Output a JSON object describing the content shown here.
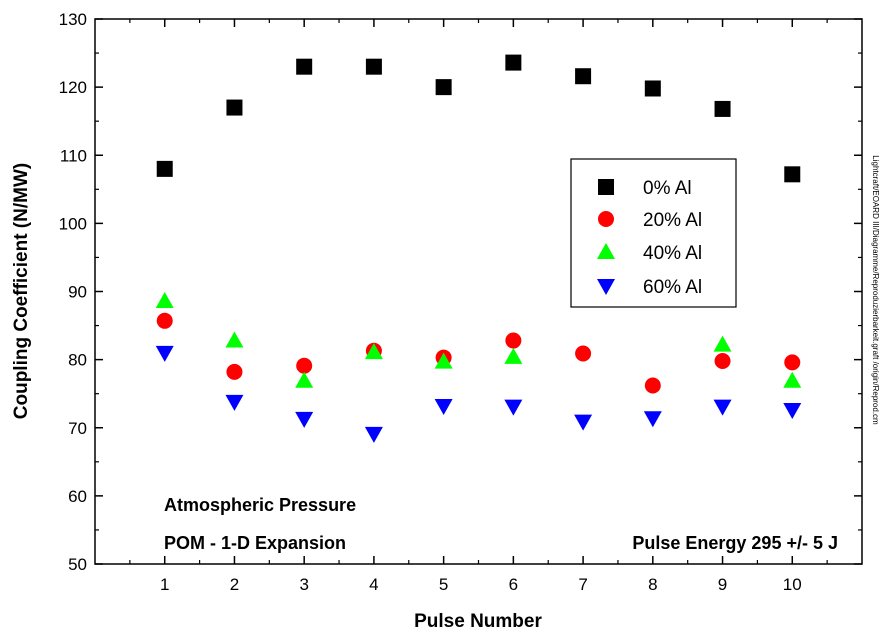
{
  "chart_data": {
    "type": "scatter",
    "xlabel": "Pulse Number",
    "ylabel": "Coupling Coefficient (N/MW)",
    "xlim": [
      0,
      11
    ],
    "ylim": [
      50,
      130
    ],
    "x_ticks": [
      1,
      2,
      3,
      4,
      5,
      6,
      7,
      8,
      9,
      10
    ],
    "y_ticks": [
      50,
      60,
      70,
      80,
      90,
      100,
      110,
      120,
      130
    ],
    "grid": false,
    "legend_position": "right",
    "series": [
      {
        "name": "0% Al",
        "marker": "square",
        "color": "#000000",
        "x": [
          1,
          2,
          3,
          4,
          5,
          6,
          7,
          8,
          9,
          10
        ],
        "y": [
          108,
          117,
          123,
          123,
          120,
          123.6,
          121.6,
          119.8,
          116.8,
          107.2
        ]
      },
      {
        "name": "20% Al",
        "marker": "circle",
        "color": "#ff0000",
        "x": [
          1,
          2,
          3,
          4,
          5,
          6,
          7,
          8,
          9,
          10
        ],
        "y": [
          85.7,
          78.2,
          79.1,
          81.3,
          80.3,
          82.8,
          80.9,
          76.2,
          79.8,
          79.6
        ]
      },
      {
        "name": "40% Al",
        "marker": "triangle-up",
        "color": "#00ff00",
        "x": [
          1,
          2,
          3,
          4,
          5,
          6,
          9,
          10
        ],
        "y": [
          88.6,
          82.8,
          76.9,
          81.1,
          79.7,
          80.4,
          82.2,
          76.9
        ]
      },
      {
        "name": "60% Al",
        "marker": "triangle-down",
        "color": "#0000ff",
        "x": [
          1,
          2,
          3,
          4,
          5,
          6,
          7,
          8,
          9,
          10
        ],
        "y": [
          81,
          73.8,
          71.3,
          69.1,
          73.2,
          73.1,
          70.9,
          71.4,
          73.1,
          72.6
        ]
      }
    ],
    "annotations": [
      "Atmospheric Pressure",
      "POM  -  1-D Expansion",
      "Pulse Energy 295 +/- 5 J"
    ],
    "side_note": "Lightcraft/EOARD III/Diagramme/Reproduzierbarkeit.graft /origin/Reprod.cm"
  }
}
